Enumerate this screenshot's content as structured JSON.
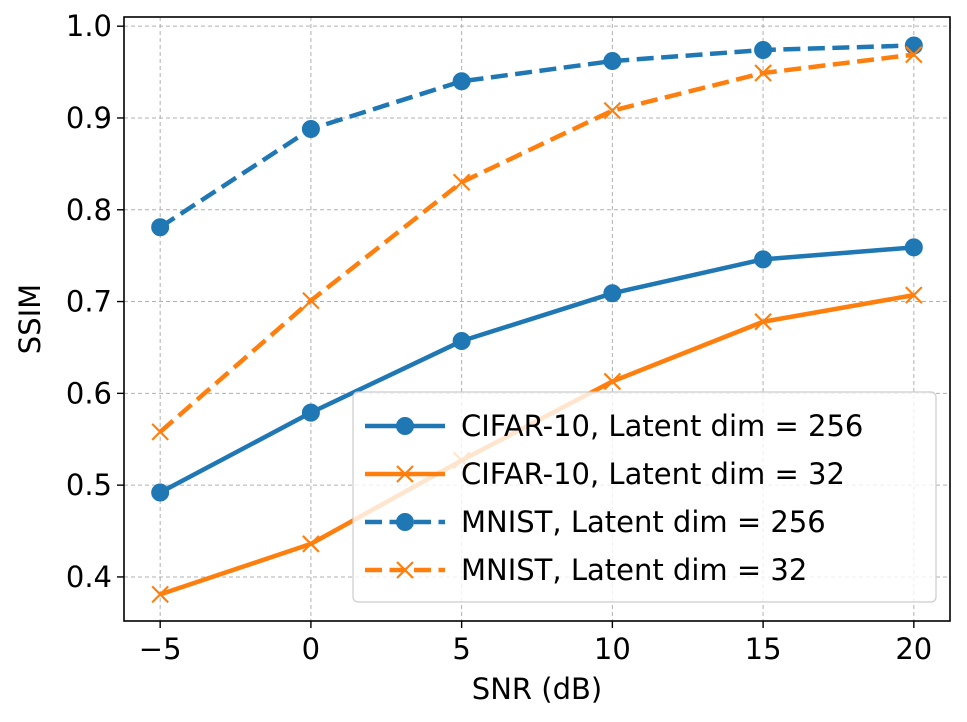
{
  "chart_data": {
    "type": "line",
    "title": "",
    "xlabel": "SNR (dB)",
    "ylabel": "SSIM",
    "x": [
      -5,
      0,
      5,
      10,
      15,
      20
    ],
    "x_tick_labels": [
      "−5",
      "0",
      "5",
      "10",
      "15",
      "20"
    ],
    "y_ticks": [
      0.4,
      0.5,
      0.6,
      0.7,
      0.8,
      0.9,
      1.0
    ],
    "y_tick_labels": [
      "0.4",
      "0.5",
      "0.6",
      "0.7",
      "0.8",
      "0.9",
      "1.0"
    ],
    "xlim": [
      -6.2,
      21.2
    ],
    "ylim": [
      0.352,
      1.01
    ],
    "grid": true,
    "legend_position": "bottom-right",
    "series": [
      {
        "name": "CIFAR-10, Latent dim = 256",
        "values": [
          0.492,
          0.579,
          0.657,
          0.709,
          0.746,
          0.759
        ],
        "color": "#1f77b4",
        "linestyle": "solid",
        "marker": "circle"
      },
      {
        "name": "CIFAR-10, Latent dim = 32",
        "values": [
          0.381,
          0.436,
          0.527,
          0.613,
          0.678,
          0.707
        ],
        "color": "#ff7f0e",
        "linestyle": "solid",
        "marker": "x"
      },
      {
        "name": "MNIST, Latent dim = 256",
        "values": [
          0.781,
          0.888,
          0.94,
          0.962,
          0.974,
          0.979
        ],
        "color": "#1f77b4",
        "linestyle": "dashed",
        "marker": "circle"
      },
      {
        "name": "MNIST, Latent dim = 32",
        "values": [
          0.558,
          0.701,
          0.83,
          0.908,
          0.949,
          0.969
        ],
        "color": "#ff7f0e",
        "linestyle": "dashed",
        "marker": "x"
      }
    ]
  }
}
